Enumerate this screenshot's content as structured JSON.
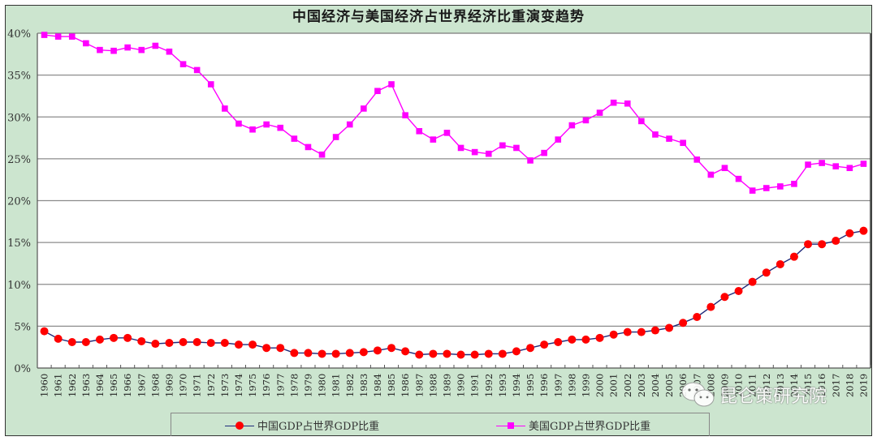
{
  "title": "中国经济与美国经济占世界经济比重演变趋势",
  "legend": {
    "china": "中国GDP占世界GDP比重",
    "us": "美国GDP占世界GDP比重"
  },
  "watermark": {
    "icon": "wechat-icon",
    "text": "昆仑策研究院"
  },
  "colors": {
    "background": "#cce5cf",
    "plot_background": "#ffffff",
    "china_line": "#1f2a7a",
    "china_marker": "#ff0000",
    "us_line": "#ff00ff",
    "us_marker": "#ff00ff",
    "grid": "#8c8c8c"
  },
  "chart_data": {
    "type": "line",
    "title": "中国经济与美国经济占世界经济比重演变趋势",
    "xlabel": "",
    "ylabel": "",
    "ylim": [
      0,
      40
    ],
    "yticks": [
      "0%",
      "5%",
      "10%",
      "15%",
      "20%",
      "25%",
      "30%",
      "35%",
      "40%"
    ],
    "grid": true,
    "legend_position": "bottom",
    "x": [
      "1960",
      "1961",
      "1962",
      "1963",
      "1964",
      "1965",
      "1966",
      "1967",
      "1968",
      "1969",
      "1970",
      "1971",
      "1972",
      "1973",
      "1974",
      "1975",
      "1976",
      "1977",
      "1978",
      "1979",
      "1980",
      "1981",
      "1982",
      "1983",
      "1984",
      "1985",
      "1986",
      "1987",
      "1988",
      "1989",
      "1990",
      "1991",
      "1992",
      "1993",
      "1994",
      "1995",
      "1996",
      "1997",
      "1998",
      "1999",
      "2000",
      "2001",
      "2002",
      "2003",
      "2004",
      "2005",
      "2006",
      "2007",
      "2008",
      "2009",
      "2010",
      "2011",
      "2012",
      "2013",
      "2014",
      "2015",
      "2016",
      "2017",
      "2018",
      "2019"
    ],
    "series": [
      {
        "name": "中国GDP占世界GDP比重",
        "marker": "circle",
        "values": [
          4.4,
          3.5,
          3.1,
          3.1,
          3.4,
          3.6,
          3.6,
          3.2,
          2.9,
          3.0,
          3.1,
          3.1,
          3.0,
          3.0,
          2.8,
          2.8,
          2.4,
          2.4,
          1.8,
          1.8,
          1.7,
          1.7,
          1.8,
          1.9,
          2.1,
          2.4,
          2.0,
          1.6,
          1.7,
          1.7,
          1.6,
          1.6,
          1.7,
          1.7,
          2.0,
          2.4,
          2.8,
          3.1,
          3.4,
          3.4,
          3.6,
          4.0,
          4.3,
          4.3,
          4.5,
          4.8,
          5.4,
          6.1,
          7.3,
          8.5,
          9.2,
          10.3,
          11.4,
          12.4,
          13.3,
          14.8,
          14.8,
          15.2,
          16.1,
          16.4
        ]
      },
      {
        "name": "美国GDP占世界GDP比重",
        "marker": "square",
        "values": [
          39.8,
          39.6,
          39.6,
          38.8,
          38.0,
          37.9,
          38.3,
          38.0,
          38.5,
          37.8,
          36.3,
          35.6,
          33.9,
          31.0,
          29.2,
          28.5,
          29.1,
          28.7,
          27.4,
          26.4,
          25.5,
          27.6,
          29.1,
          31.0,
          33.1,
          33.9,
          30.2,
          28.3,
          27.3,
          28.1,
          26.3,
          25.8,
          25.6,
          26.6,
          26.3,
          24.8,
          25.7,
          27.3,
          29.0,
          29.6,
          30.5,
          31.7,
          31.6,
          29.5,
          27.9,
          27.4,
          26.9,
          24.9,
          23.1,
          23.9,
          22.6,
          21.2,
          21.5,
          21.7,
          22.0,
          24.3,
          24.5,
          24.1,
          23.9,
          24.4
        ]
      }
    ]
  }
}
